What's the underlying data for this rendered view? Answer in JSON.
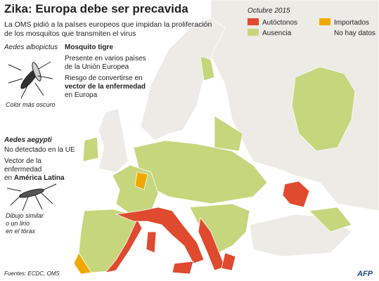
{
  "header": {
    "title": "Zika: Europa debe ser precavida",
    "subtitle": [
      "La OMS pidió a la países europeos que impidan la proliferación",
      "de los mosquitos que transmiten el virus"
    ]
  },
  "legend": {
    "title": "Octubre 2015",
    "items": [
      {
        "name": "Autóctonos",
        "color": "#e04a2e"
      },
      {
        "name": "Importados",
        "color": "#f0a800"
      },
      {
        "name": "Ausencia",
        "color": "#c5d67c"
      },
      {
        "name": "No hay datos",
        "color": "#ecebe6"
      }
    ]
  },
  "albopictus": {
    "species": "Aedes albopictus",
    "common": "Mosquito tigre",
    "presence": [
      "Presente en varios países",
      "de la Unión Europea"
    ],
    "risk": [
      "Riesgo de convertirse en",
      "vector de la enfermedad",
      "en Europa"
    ],
    "caption": "Color más oscuro"
  },
  "aegypti": {
    "species": "Aedes aegypti",
    "status": "No detectado en la UE",
    "vector": [
      "Vector de la",
      "enfermedad",
      "en",
      "América Latina"
    ],
    "caption": [
      "Dibujo similar",
      "o un lirio",
      "en el tórax"
    ]
  },
  "footer": {
    "source": "Fuentes: ECDC, OMS",
    "credit": "AFP"
  }
}
